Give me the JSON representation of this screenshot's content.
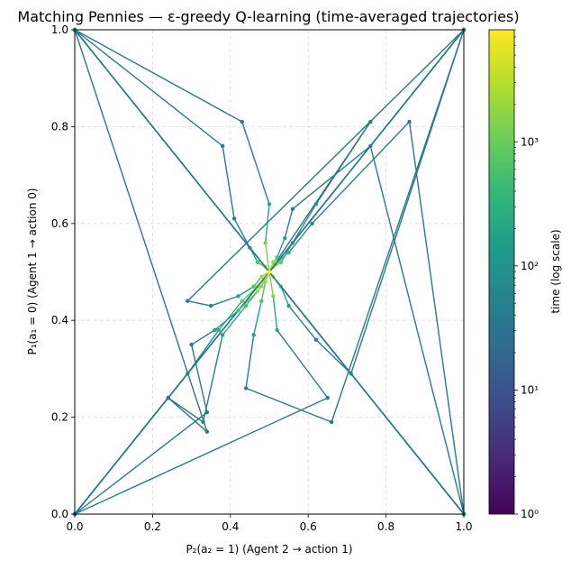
{
  "chart_data": {
    "type": "line",
    "title": "Matching Pennies — ε-greedy Q-learning (time-averaged trajectories)",
    "xlabel": "P₂(a₂ = 1)  (Agent 2 → action 1)",
    "ylabel": "P₁(a₁ = 0)  (Agent 1 → action 0)",
    "xlim": [
      0,
      1
    ],
    "ylim": [
      0,
      1
    ],
    "x_ticks": [
      "0.0",
      "0.2",
      "0.4",
      "0.6",
      "0.8",
      "1.0"
    ],
    "y_ticks": [
      "0.0",
      "0.2",
      "0.4",
      "0.6",
      "0.8",
      "1.0"
    ],
    "x_tick_values": [
      0,
      0.2,
      0.4,
      0.6,
      0.8,
      1.0
    ],
    "y_tick_values": [
      0,
      0.2,
      0.4,
      0.6,
      0.8,
      1.0
    ],
    "grid": true,
    "colorbar": {
      "label": "time (log scale)",
      "scale": "log",
      "colormap": "viridis",
      "range": [
        1,
        8000
      ],
      "ticks": [
        "10⁰",
        "10¹",
        "10²",
        "10³"
      ],
      "tick_values": [
        1,
        10,
        100,
        1000
      ]
    },
    "series": [
      {
        "x": [
          0,
          1.0,
          0.5,
          0.76,
          0.62,
          0.56,
          0.53,
          0.51,
          0.5
        ],
        "y": [
          1.0,
          0,
          0.5,
          0.81,
          0.64,
          0.56,
          0.52,
          0.51,
          0.5
        ]
      },
      {
        "x": [
          1.0,
          0,
          0.34,
          0.24,
          0.29,
          0.37,
          0.43,
          0.47,
          0.5
        ],
        "y": [
          0,
          1.0,
          0.17,
          0.24,
          0.29,
          0.38,
          0.44,
          0.47,
          0.5
        ]
      },
      {
        "x": [
          0,
          1.0,
          0.66,
          0.44,
          0.46,
          0.48,
          0.49,
          0.5
        ],
        "y": [
          0,
          1.0,
          0.19,
          0.26,
          0.37,
          0.44,
          0.48,
          0.5
        ]
      },
      {
        "x": [
          1.0,
          0,
          0.24,
          0.33,
          0.38,
          0.44,
          0.48,
          0.5
        ],
        "y": [
          1.0,
          0,
          0.24,
          0.19,
          0.37,
          0.43,
          0.47,
          0.5
        ]
      },
      {
        "x": [
          0,
          1.0,
          0.76,
          0.56,
          0.54,
          0.52,
          0.51,
          0.5
        ],
        "y": [
          1.0,
          0,
          0.76,
          0.63,
          0.57,
          0.53,
          0.52,
          0.5
        ]
      },
      {
        "x": [
          1.0,
          0,
          0.38,
          0.41,
          0.45,
          0.47,
          0.49,
          0.5
        ],
        "y": [
          0,
          1.0,
          0.76,
          0.61,
          0.55,
          0.52,
          0.51,
          0.5
        ]
      },
      {
        "x": [
          0,
          1.0,
          0.71,
          0.62,
          0.55,
          0.53,
          0.51,
          0.5
        ],
        "y": [
          0,
          1.0,
          0.29,
          0.36,
          0.43,
          0.47,
          0.49,
          0.5
        ]
      },
      {
        "x": [
          1.0,
          0,
          0.65,
          0.52,
          0.51,
          0.5
        ],
        "y": [
          1.0,
          0,
          0.24,
          0.38,
          0.45,
          0.5
        ]
      },
      {
        "x": [
          0,
          1.0,
          0.86,
          0.61,
          0.55,
          0.52,
          0.5
        ],
        "y": [
          1.0,
          0,
          0.81,
          0.6,
          0.54,
          0.52,
          0.5
        ]
      },
      {
        "x": [
          1.0,
          0,
          0.43,
          0.5,
          0.49,
          0.5
        ],
        "y": [
          0,
          1.0,
          0.81,
          0.64,
          0.56,
          0.5
        ]
      },
      {
        "x": [
          0,
          1.0,
          0.29,
          0.35,
          0.42,
          0.46,
          0.48,
          0.5
        ],
        "y": [
          0,
          1.0,
          0.44,
          0.43,
          0.45,
          0.47,
          0.49,
          0.5
        ]
      },
      {
        "x": [
          1.0,
          0,
          0.34,
          0.3,
          0.36,
          0.42,
          0.47,
          0.5
        ],
        "y": [
          1.0,
          0,
          0.21,
          0.35,
          0.38,
          0.42,
          0.46,
          0.5
        ]
      }
    ]
  }
}
